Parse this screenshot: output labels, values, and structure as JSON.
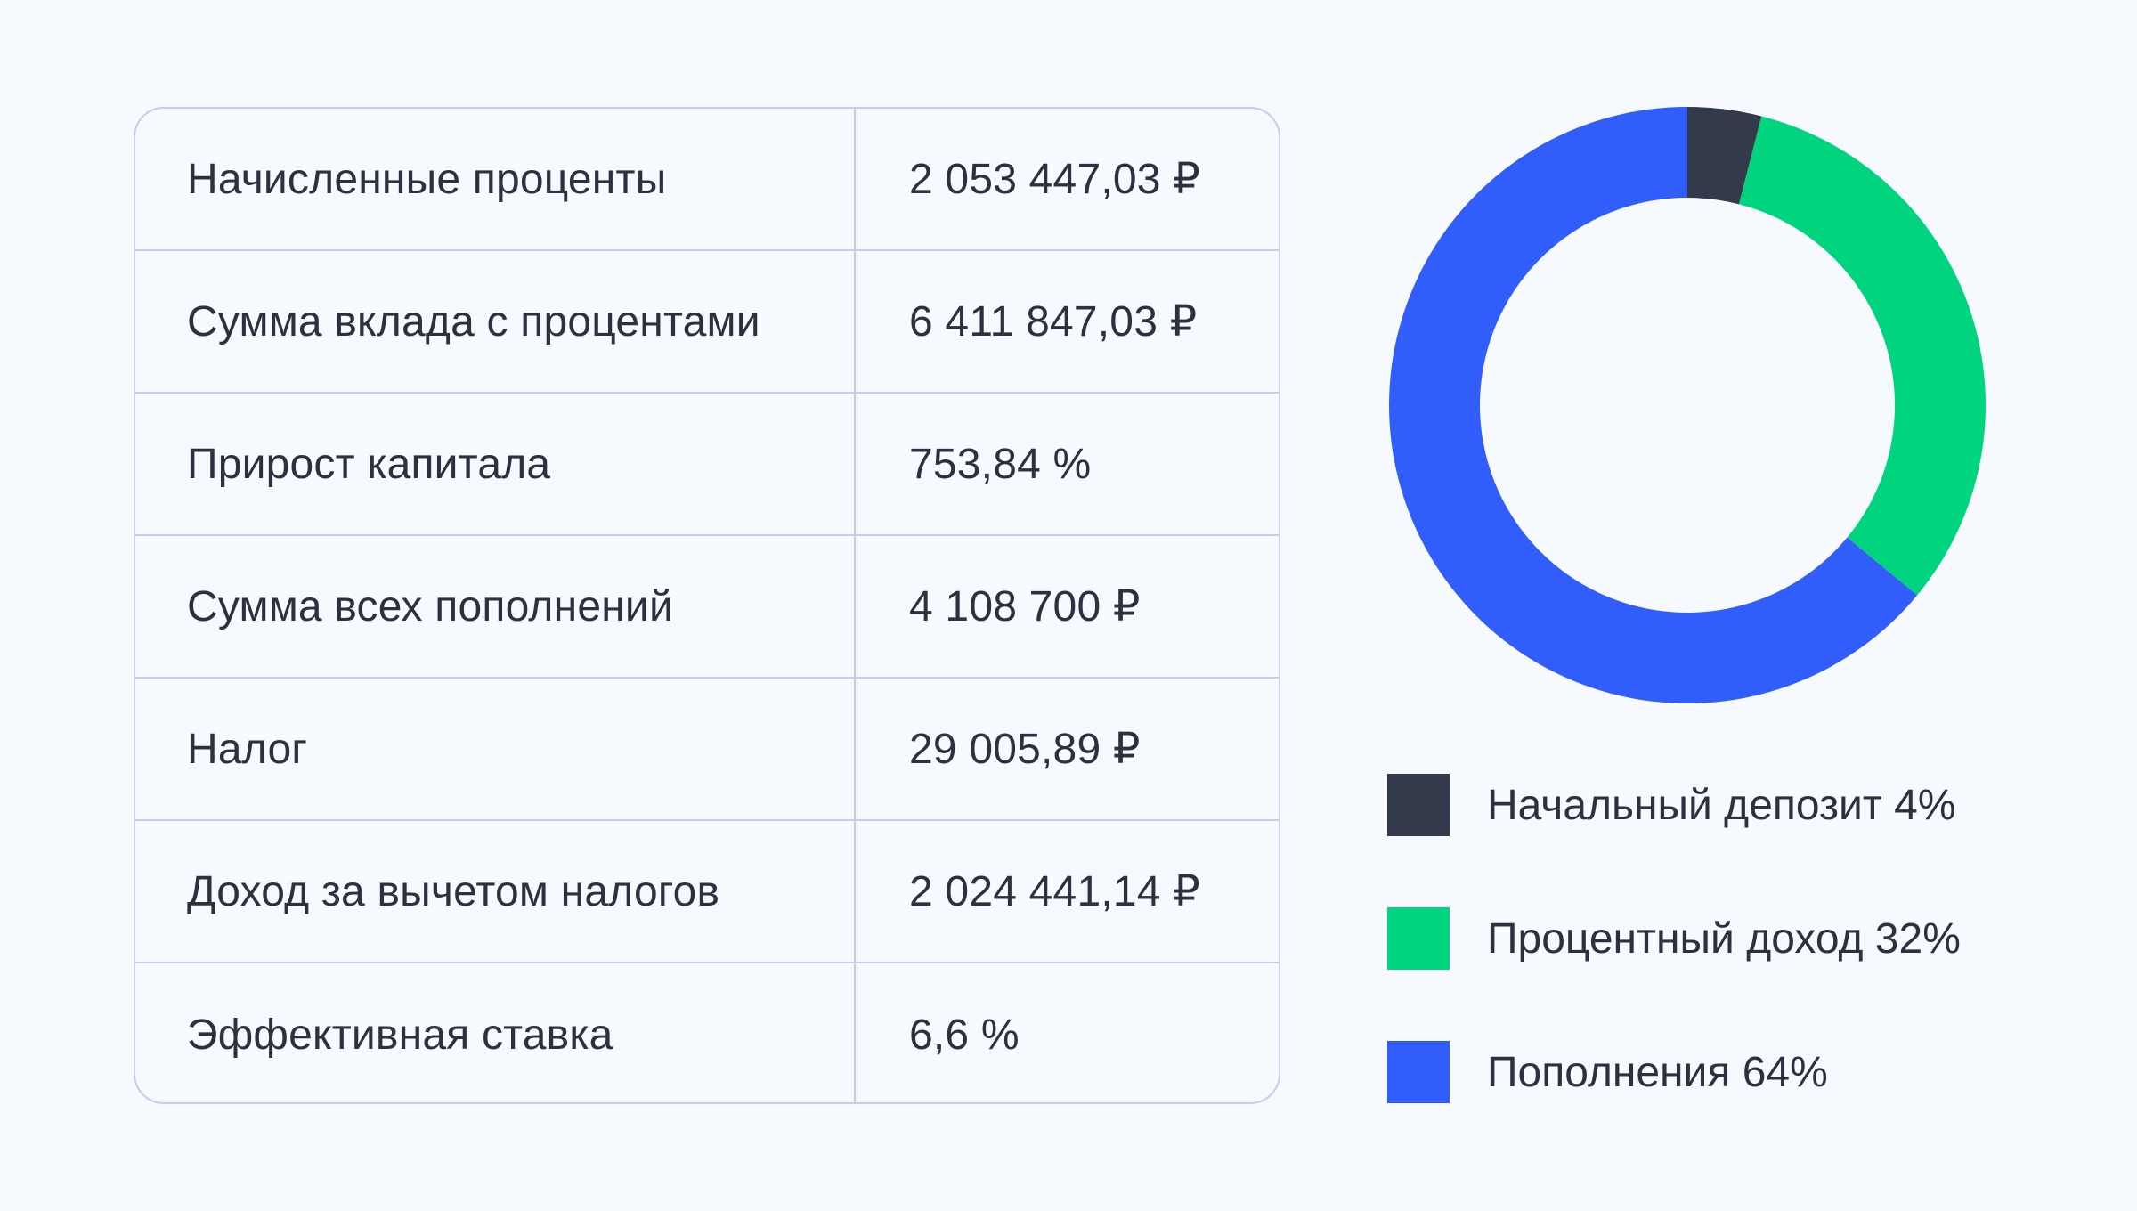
{
  "table": {
    "rows": [
      {
        "label": "Начисленные проценты",
        "value": "2 053 447,03 ₽"
      },
      {
        "label": "Сумма вклада с процентами",
        "value": "6 411 847,03 ₽"
      },
      {
        "label": "Прирост капитала",
        "value": "753,84 %"
      },
      {
        "label": "Сумма всех пополнений",
        "value": "4 108 700 ₽"
      },
      {
        "label": "Налог",
        "value": "29 005,89 ₽"
      },
      {
        "label": "Доход за вычетом налогов",
        "value": "2 024 441,14 ₽"
      },
      {
        "label": "Эффективная ставка",
        "value": "6,6 %"
      }
    ]
  },
  "chart_data": {
    "type": "pie",
    "donut": true,
    "title": "",
    "slices": [
      {
        "name": "Начальный депозит",
        "value": 4,
        "label": "Начальный депозит 4%",
        "color": "#323a4b"
      },
      {
        "name": "Процентный доход",
        "value": 32,
        "label": "Процентный доход 32%",
        "color": "#00d47f"
      },
      {
        "name": "Пополнения",
        "value": 64,
        "label": "Пополнения 64%",
        "color": "#315efb"
      }
    ],
    "legend": "bottom"
  }
}
